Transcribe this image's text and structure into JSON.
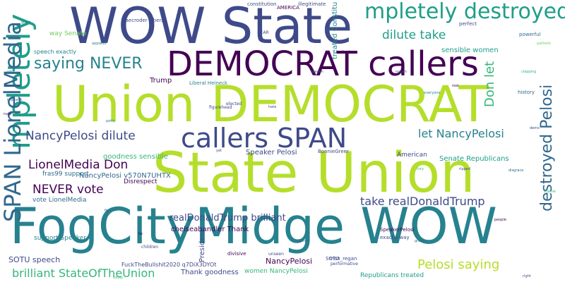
{
  "palette": {
    "purple": "#440154",
    "indigo": "#3e4a89",
    "blue": "#31688e",
    "teal": "#26828e",
    "green": "#1f9e89",
    "mint": "#35b779",
    "lime": "#6ece58",
    "yellow": "#b5de2b",
    "bright": "#fde725"
  },
  "words": {
    "fogcitymidge_wow": "FogCityMidge WOW",
    "union_democrat": "Union DEMOCRAT",
    "state_union": "State Union",
    "wow_state": "WOW State",
    "democrat_callers": "DEMOCRAT callers",
    "callers_span": "callers SPAN",
    "mpletely_destroyed": "mpletely destroyed",
    "mpletely": "mpletely",
    "saying_never": "saying NEVER",
    "span_lionelmedia": "SPAN LionelMedia",
    "nancypelosi_dilute": "NancyPelosi dilute",
    "lionelmedia_don": "LionelMedia Don",
    "never_vote": "NEVER vote",
    "dilute_take": "dilute take",
    "let_nancypelosi": "let NancyPelosi",
    "destroyed_pelosi": "destroyed Pelosi",
    "don_let": "Don let",
    "take_realdonaldtrump": "take realDonaldTrump",
    "realdonaldtrump_brilliant": "realDonaldTrump brilliant",
    "pelosi_saying": "Pelosi saying",
    "brilliant_stateoftheunion": "brilliant StateOfTheUnion",
    "sotu_speech": "SOTU speech",
    "nancypelosi_small": "NancyPelosi",
    "senate_republicans": "Senate Republicans",
    "sensible_women": "sensible women",
    "goodness_sensible": "goodness sensible",
    "thank_goodness": "Thank goodness",
    "chelseahandler_thank": "chelseahandler Thank",
    "nancypelosi_id": "NancyPelosi v570N7UHTX",
    "speech_exactly": "speech exactly",
    "way_senate": "way Senate",
    "trump": "Trump",
    "speaker_pelosi": "Speaker Pelosi",
    "vote_lionelmedia": "vote LionelMedia",
    "support_speaker": "support Speaker",
    "fras99_support": "fras99 support",
    "disrespect": "Disrespect",
    "women_nancypelosi": "women NancyPelosi",
    "republicans_treated": "Republicans treated",
    "american": "American",
    "fuckthebullshit": "FuckTheBullshit2020 q7DiX3DYOt",
    "liberal_heineck": "Liberal Heineck",
    "traecroder_liberal": "traecroder Liberal",
    "treated_constitu": "treated Constitu",
    "constitution": "constitution",
    "america": "AMERICA",
    "illegitimate": "illegitimate",
    "sotu": "SOTU",
    "president": "President",
    "divisive": "divisive",
    "perfect": "perfect",
    "powerful": "powerful",
    "history": "history",
    "exactly_way": "exactly way",
    "speakerpelosi": "SpeakerPelosi",
    "bonniegreer": "BonnieGreer",
    "trish_regan": "trish_regan",
    "performative": "performative",
    "unseen": "unseen",
    "children": "children",
    "figurehead": "figurehead",
    "elected": "elected",
    "respect": "respect",
    "applaud": "applaud",
    "clapping": "clapping",
    "ripped": "ripped",
    "speech": "speech",
    "leader": "leader",
    "grabs": "grabs",
    "ugly": "ugly",
    "fury": "fury",
    "dems": "dems",
    "lie": "lie",
    "yet": "yet",
    "feel": "feel",
    "tear": "TEAR",
    "impeach": "impeach",
    "pathetic": "pathetic",
    "everyone": "everyone",
    "rude": "rude",
    "shame": "shame",
    "classless": "classless",
    "disgrace": "disgrace",
    "petty": "petty",
    "nation": "nation",
    "people": "people",
    "country": "country",
    "today": "today",
    "right": "right",
    "great": "great",
    "good": "good",
    "real": "real",
    "hate": "hate"
  }
}
